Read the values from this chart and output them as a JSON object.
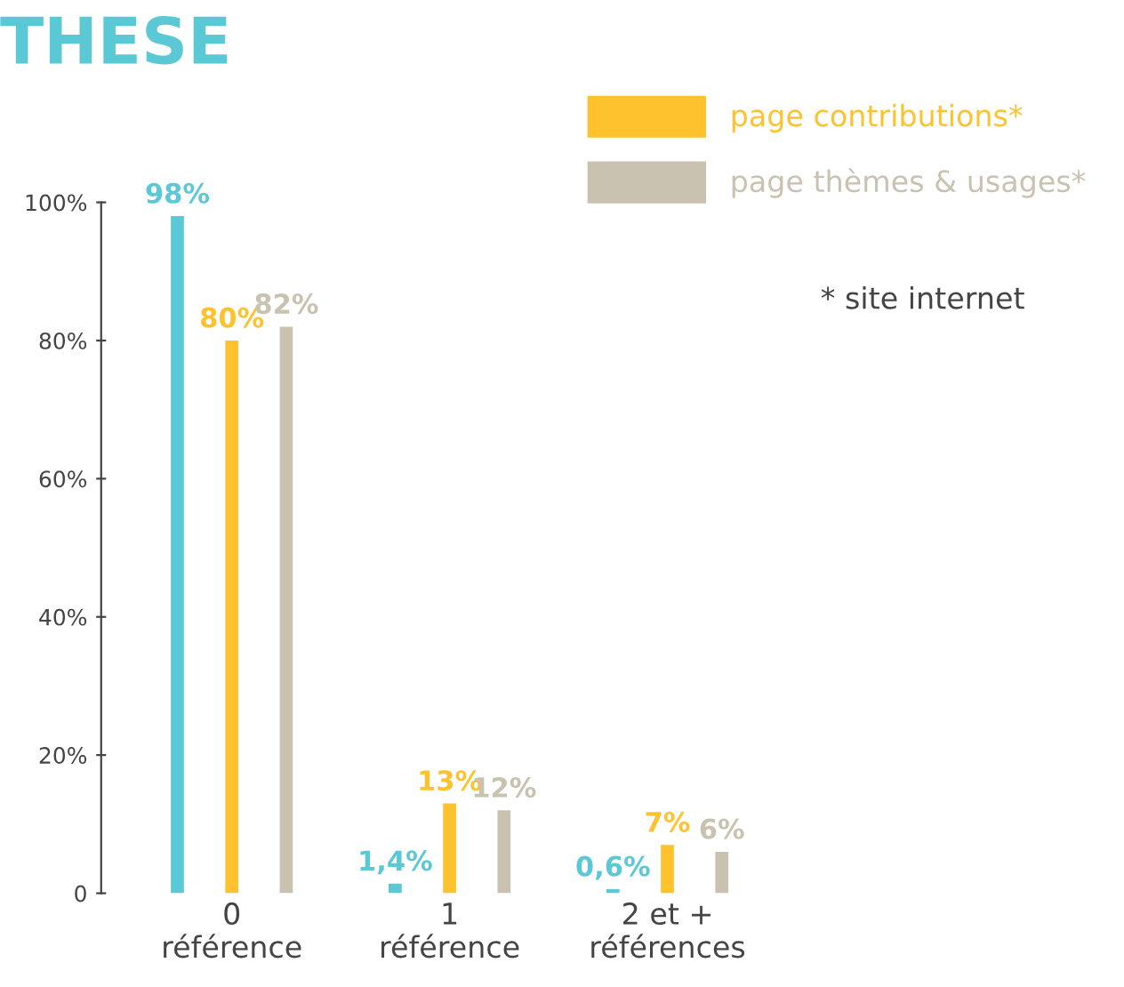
{
  "chart_data": {
    "type": "bar",
    "title": "THESE",
    "categories": [
      "0\nréférence",
      "1\nréférence",
      "2 et +\nréférences"
    ],
    "series": [
      {
        "color": "#5bc8d6",
        "values": [
          98,
          1.4,
          0.6
        ],
        "value_labels": [
          "98%",
          "1,4%",
          "0,6%"
        ]
      },
      {
        "name": "page contributions*",
        "color": "#fec22e",
        "values": [
          80,
          13,
          7
        ],
        "value_labels": [
          "80%",
          "13%",
          "7%"
        ]
      },
      {
        "name": "page thèmes & usages*",
        "color": "#c9c2b0",
        "values": [
          82,
          12,
          6
        ],
        "value_labels": [
          "82%",
          "12%",
          "6%"
        ]
      }
    ],
    "ylim": [
      0,
      100
    ],
    "yticks": [
      0,
      {
        "value": 20,
        "label": "20%"
      },
      {
        "value": 40,
        "label": "40%"
      },
      {
        "value": 60,
        "label": "60%"
      },
      {
        "value": 80,
        "label": "80%"
      },
      {
        "value": 100,
        "label": "100%"
      }
    ],
    "annotations": [
      "* site internet"
    ],
    "legend": "top right",
    "grid": false
  }
}
